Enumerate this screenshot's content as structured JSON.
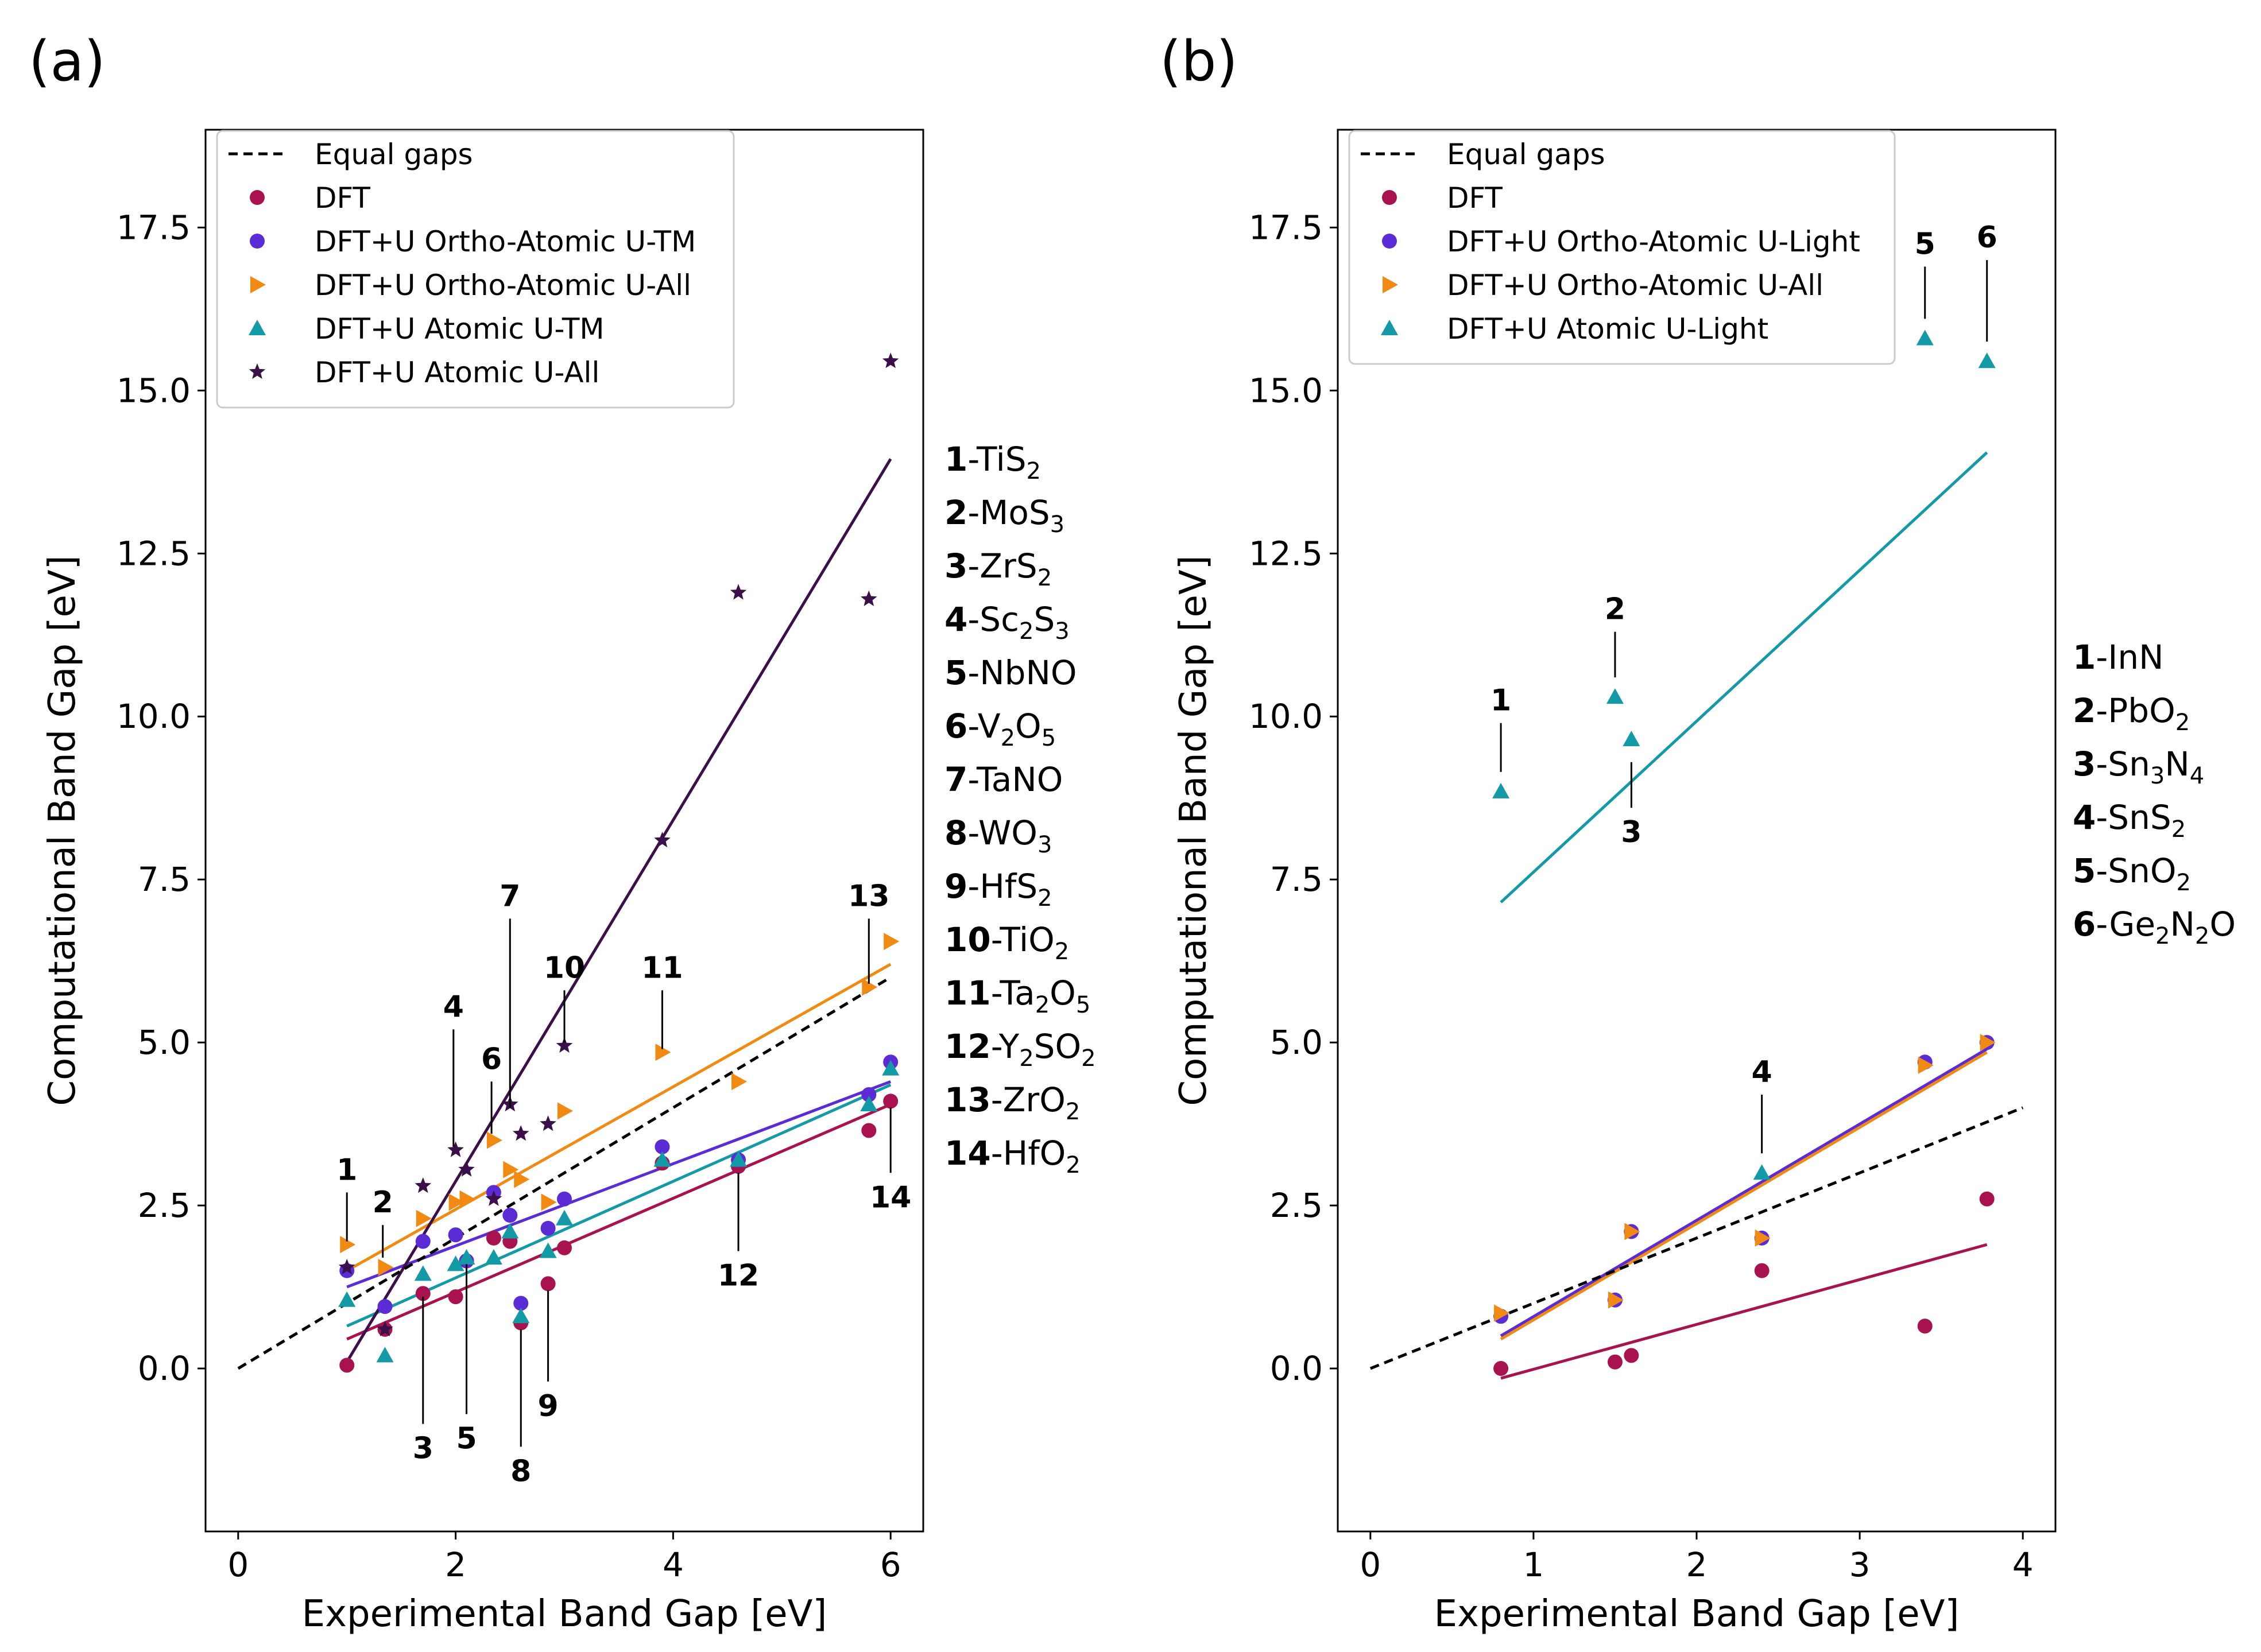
{
  "colors": {
    "dft": "#A8134F",
    "ortho_tm": "#5B2BD6",
    "ortho_all": "#F08A12",
    "atomic_tm": "#139AA6",
    "atomic_all": "#3A0F4A",
    "equal": "#000000"
  },
  "chart_data": [
    {
      "type": "scatter",
      "panel_label": "(a)",
      "xlabel": "Experimental Band Gap [eV]",
      "ylabel": "Computational Band Gap [eV]",
      "xlim": [
        -0.3,
        6.3
      ],
      "ylim": [
        -2.5,
        19.0
      ],
      "xticks": [
        0,
        2,
        4,
        6
      ],
      "xtick_labels": [
        "0",
        "2",
        "4",
        "6"
      ],
      "yticks": [
        0.0,
        2.5,
        5.0,
        7.5,
        10.0,
        12.5,
        15.0,
        17.5
      ],
      "ytick_labels": [
        "0.0",
        "2.5",
        "5.0",
        "7.5",
        "10.0",
        "12.5",
        "15.0",
        "17.5"
      ],
      "legend_position": "top-left",
      "legend": [
        "Equal gaps",
        "DFT",
        "DFT+U Ortho-Atomic U-TM",
        "DFT+U Ortho-Atomic U-All",
        "DFT+U Atomic U-TM",
        "DFT+U Atomic U-All"
      ],
      "equal_line": {
        "x": [
          0,
          6
        ],
        "y": [
          0,
          6
        ]
      },
      "series": [
        {
          "name": "DFT",
          "marker": "circle",
          "color_key": "dft",
          "x": [
            1.0,
            1.35,
            1.7,
            2.0,
            2.1,
            2.35,
            2.5,
            2.6,
            2.85,
            3.0,
            3.9,
            4.6,
            5.8,
            6.0
          ],
          "y": [
            0.05,
            0.6,
            1.15,
            1.1,
            1.65,
            2.0,
            1.95,
            0.7,
            1.3,
            1.85,
            3.15,
            3.1,
            3.65,
            4.1
          ],
          "fit": {
            "x": [
              1.0,
              6.0
            ],
            "y": [
              0.45,
              4.05
            ]
          }
        },
        {
          "name": "DFT+U Ortho-Atomic U-TM",
          "marker": "circle",
          "color_key": "ortho_tm",
          "x": [
            1.0,
            1.35,
            1.7,
            2.0,
            2.1,
            2.35,
            2.5,
            2.6,
            2.85,
            3.0,
            3.9,
            4.6,
            5.8,
            6.0
          ],
          "y": [
            1.5,
            0.95,
            1.95,
            2.05,
            1.65,
            2.7,
            2.35,
            1.0,
            2.15,
            2.6,
            3.4,
            3.2,
            4.2,
            4.7
          ],
          "fit": {
            "x": [
              1.0,
              6.0
            ],
            "y": [
              1.25,
              4.4
            ]
          }
        },
        {
          "name": "DFT+U Ortho-Atomic U-All",
          "marker": "triangle-right",
          "color_key": "ortho_all",
          "x": [
            1.0,
            1.35,
            1.7,
            2.0,
            2.1,
            2.35,
            2.5,
            2.6,
            2.85,
            3.0,
            3.9,
            4.6,
            5.8,
            6.0
          ],
          "y": [
            1.9,
            1.55,
            2.3,
            2.55,
            2.6,
            3.5,
            3.05,
            2.9,
            2.55,
            3.95,
            4.85,
            4.4,
            5.85,
            6.55
          ],
          "fit": {
            "x": [
              1.0,
              6.0
            ],
            "y": [
              1.5,
              6.2
            ]
          }
        },
        {
          "name": "DFT+U Atomic U-TM",
          "marker": "triangle-up",
          "color_key": "atomic_tm",
          "x": [
            1.0,
            1.35,
            1.7,
            2.0,
            2.1,
            2.35,
            2.5,
            2.6,
            2.85,
            3.0,
            3.9,
            4.6,
            5.8,
            6.0
          ],
          "y": [
            1.05,
            0.2,
            1.45,
            1.6,
            1.7,
            1.7,
            2.1,
            0.8,
            1.8,
            2.3,
            3.2,
            3.2,
            4.05,
            4.6
          ],
          "fit": {
            "x": [
              1.0,
              6.0
            ],
            "y": [
              0.65,
              4.35
            ]
          }
        },
        {
          "name": "DFT+U Atomic U-All",
          "marker": "star",
          "color_key": "atomic_all",
          "x": [
            1.0,
            1.35,
            1.7,
            2.0,
            2.1,
            2.35,
            2.5,
            2.6,
            2.85,
            3.0,
            3.9,
            4.6,
            5.8,
            6.0
          ],
          "y": [
            1.55,
            0.6,
            2.8,
            3.35,
            3.05,
            2.6,
            4.05,
            3.6,
            3.75,
            4.95,
            8.1,
            11.9,
            11.8,
            15.45
          ],
          "fit": {
            "x": [
              1.0,
              6.0
            ],
            "y": [
              0.1,
              13.95
            ]
          }
        }
      ],
      "annotations": [
        {
          "label": "1",
          "x": 1.0,
          "y1": 1.95,
          "y2": 2.7,
          "text_pos": "above"
        },
        {
          "label": "2",
          "x": 1.33,
          "y1": 1.7,
          "y2": 2.2,
          "text_pos": "above"
        },
        {
          "label": "3",
          "x": 1.7,
          "y1": 1.1,
          "y2": -0.85,
          "text_pos": "below"
        },
        {
          "label": "4",
          "x": 1.98,
          "y1": 3.4,
          "y2": 5.2,
          "text_pos": "above"
        },
        {
          "label": "5",
          "x": 2.1,
          "y1": 1.6,
          "y2": -0.7,
          "text_pos": "below"
        },
        {
          "label": "6",
          "x": 2.33,
          "y1": 3.6,
          "y2": 4.4,
          "text_pos": "above"
        },
        {
          "label": "7",
          "x": 2.5,
          "y1": 4.0,
          "y2": 6.9,
          "text_pos": "above"
        },
        {
          "label": "8",
          "x": 2.6,
          "y1": 0.6,
          "y2": -1.2,
          "text_pos": "below"
        },
        {
          "label": "9",
          "x": 2.85,
          "y1": 1.2,
          "y2": -0.2,
          "text_pos": "below"
        },
        {
          "label": "10",
          "x": 3.0,
          "y1": 5.0,
          "y2": 5.8,
          "text_pos": "above"
        },
        {
          "label": "11",
          "x": 3.9,
          "y1": 4.9,
          "y2": 5.8,
          "text_pos": "above"
        },
        {
          "label": "12",
          "x": 4.6,
          "y1": 3.0,
          "y2": 1.8,
          "text_pos": "below"
        },
        {
          "label": "13",
          "x": 5.8,
          "y1": 5.9,
          "y2": 6.9,
          "text_pos": "above"
        },
        {
          "label": "14",
          "x": 6.0,
          "y1": 4.0,
          "y2": 3.0,
          "text_pos": "below"
        }
      ],
      "materials": [
        {
          "num": "1",
          "name": "-TiS",
          "sub": "2",
          "rest": ""
        },
        {
          "num": "2",
          "name": "-MoS",
          "sub": "3",
          "rest": ""
        },
        {
          "num": "3",
          "name": "-ZrS",
          "sub": "2",
          "rest": ""
        },
        {
          "num": "4",
          "name": "-Sc",
          "sub": "2",
          "rest": "S3"
        },
        {
          "num": "5",
          "name": "-NbNO",
          "sub": "",
          "rest": ""
        },
        {
          "num": "6",
          "name": "-V",
          "sub": "2",
          "rest": "O5"
        },
        {
          "num": "7",
          "name": "-TaNO",
          "sub": "",
          "rest": ""
        },
        {
          "num": "8",
          "name": "-WO",
          "sub": "3",
          "rest": ""
        },
        {
          "num": "9",
          "name": "-HfS",
          "sub": "2",
          "rest": ""
        },
        {
          "num": "10",
          "name": "-TiO",
          "sub": "2",
          "rest": ""
        },
        {
          "num": "11",
          "name": "-Ta",
          "sub": "2",
          "rest": "O5"
        },
        {
          "num": "12",
          "name": "-Y",
          "sub": "2",
          "rest": "SO2"
        },
        {
          "num": "13",
          "name": "-ZrO",
          "sub": "2",
          "rest": ""
        },
        {
          "num": "14",
          "name": "-HfO",
          "sub": "2",
          "rest": ""
        }
      ]
    },
    {
      "type": "scatter",
      "panel_label": "(b)",
      "xlabel": "Experimental Band Gap [eV]",
      "ylabel": "Computational Band Gap [eV]",
      "xlim": [
        -0.2,
        4.2
      ],
      "ylim": [
        -2.5,
        19.0
      ],
      "xticks": [
        0,
        1,
        2,
        3,
        4
      ],
      "xtick_labels": [
        "0",
        "1",
        "2",
        "3",
        "4"
      ],
      "yticks": [
        0.0,
        2.5,
        5.0,
        7.5,
        10.0,
        12.5,
        15.0,
        17.5
      ],
      "ytick_labels": [
        "0.0",
        "2.5",
        "5.0",
        "7.5",
        "10.0",
        "12.5",
        "15.0",
        "17.5"
      ],
      "legend_position": "top-left",
      "legend": [
        "Equal gaps",
        "DFT",
        "DFT+U Ortho-Atomic U-Light",
        "DFT+U Ortho-Atomic U-All",
        "DFT+U Atomic U-Light"
      ],
      "equal_line": {
        "x": [
          0,
          4
        ],
        "y": [
          0,
          4
        ]
      },
      "series": [
        {
          "name": "DFT",
          "marker": "circle",
          "color_key": "dft",
          "x": [
            0.8,
            1.5,
            1.6,
            2.4,
            3.4,
            3.78
          ],
          "y": [
            0.0,
            0.1,
            0.2,
            1.5,
            0.65,
            2.6
          ],
          "fit": {
            "x": [
              0.8,
              3.78
            ],
            "y": [
              -0.15,
              1.9
            ]
          }
        },
        {
          "name": "DFT+U Ortho-Atomic U-Light",
          "marker": "circle",
          "color_key": "ortho_tm",
          "x": [
            0.8,
            1.5,
            1.6,
            2.4,
            3.4,
            3.78
          ],
          "y": [
            0.8,
            1.05,
            2.1,
            2.0,
            4.7,
            5.0
          ],
          "fit": {
            "x": [
              0.8,
              3.78
            ],
            "y": [
              0.5,
              4.9
            ],
            "dashed": true
          }
        },
        {
          "name": "DFT+U Ortho-Atomic U-All",
          "marker": "triangle-right",
          "color_key": "ortho_all",
          "x": [
            0.8,
            1.5,
            1.6,
            2.4,
            3.4,
            3.78
          ],
          "y": [
            0.85,
            1.05,
            2.1,
            2.0,
            4.65,
            5.0
          ],
          "fit": {
            "x": [
              0.8,
              3.78
            ],
            "y": [
              0.45,
              4.85
            ]
          }
        },
        {
          "name": "DFT+U Atomic U-Light",
          "marker": "triangle-up",
          "color_key": "atomic_tm",
          "x": [
            0.8,
            1.5,
            1.6,
            2.4,
            3.4,
            3.78
          ],
          "y": [
            8.85,
            10.3,
            9.65,
            3.0,
            15.8,
            15.45
          ],
          "fit": {
            "x": [
              0.8,
              3.78
            ],
            "y": [
              7.15,
              14.05
            ]
          }
        }
      ],
      "annotations": [
        {
          "label": "1",
          "x": 0.8,
          "y1": 9.15,
          "y2": 9.9,
          "text_pos": "above"
        },
        {
          "label": "2",
          "x": 1.5,
          "y1": 10.6,
          "y2": 11.3,
          "text_pos": "above"
        },
        {
          "label": "3",
          "x": 1.6,
          "y1": 9.3,
          "y2": 8.6,
          "text_pos": "below"
        },
        {
          "label": "4",
          "x": 2.4,
          "y1": 3.3,
          "y2": 4.2,
          "text_pos": "above"
        },
        {
          "label": "5",
          "x": 3.4,
          "y1": 16.1,
          "y2": 16.9,
          "text_pos": "above"
        },
        {
          "label": "6",
          "x": 3.78,
          "y1": 15.75,
          "y2": 17.0,
          "text_pos": "above"
        }
      ],
      "materials": [
        {
          "num": "1",
          "name": "-InN",
          "sub": "",
          "rest": ""
        },
        {
          "num": "2",
          "name": "-PbO",
          "sub": "2",
          "rest": ""
        },
        {
          "num": "3",
          "name": "-Sn",
          "sub": "3",
          "rest": "N4"
        },
        {
          "num": "4",
          "name": "-SnS",
          "sub": "2",
          "rest": ""
        },
        {
          "num": "5",
          "name": "-SnO",
          "sub": "2",
          "rest": ""
        },
        {
          "num": "6",
          "name": "-Ge",
          "sub": "2",
          "rest": "N2O"
        }
      ]
    }
  ]
}
